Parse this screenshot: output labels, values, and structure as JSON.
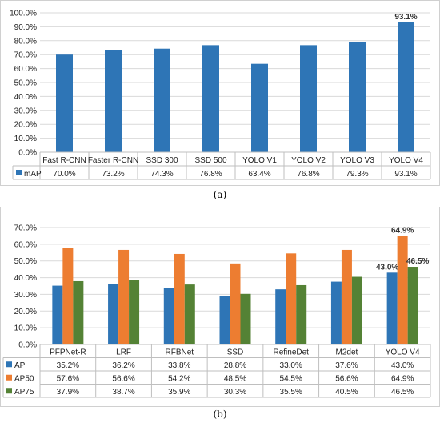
{
  "charts": {
    "a": {
      "caption": "(a)",
      "chart_data": {
        "type": "bar",
        "categories": [
          "Fast R-CNN",
          "Faster R-CNN",
          "SSD 300",
          "SSD 500",
          "YOLO V1",
          "YOLO V2",
          "YOLO V3",
          "YOLO V4"
        ],
        "series": [
          {
            "name": "mAP",
            "values": [
              70.0,
              73.2,
              74.3,
              76.8,
              63.4,
              76.8,
              79.3,
              93.1
            ],
            "color": "#2E75B6"
          }
        ],
        "value_labels": [
          "70.0%",
          "73.2%",
          "74.3%",
          "76.8%",
          "63.4%",
          "76.8%",
          "79.3%",
          "93.1%"
        ],
        "ylim": [
          0,
          100
        ],
        "yticks": [
          0,
          10,
          20,
          30,
          40,
          50,
          60,
          70,
          80,
          90,
          100
        ],
        "ytick_labels": [
          "0.0%",
          "10.0%",
          "20.0%",
          "30.0%",
          "40.0%",
          "50.0%",
          "60.0%",
          "70.0%",
          "80.0%",
          "90.0%",
          "100.0%"
        ],
        "annotations": [
          {
            "series": 0,
            "index": 7,
            "text": "93.1%"
          }
        ],
        "grid": true,
        "legend": "data-table-left"
      }
    },
    "b": {
      "caption": "(b)",
      "chart_data": {
        "type": "bar",
        "categories": [
          "PFPNet-R",
          "LRF",
          "RFBNet",
          "SSD",
          "RefineDet",
          "M2det",
          "YOLO V4"
        ],
        "series": [
          {
            "name": "AP",
            "values": [
              35.2,
              36.2,
              33.8,
              28.8,
              33.0,
              37.6,
              43.0
            ],
            "color": "#2E75B6"
          },
          {
            "name": "AP50",
            "values": [
              57.6,
              56.6,
              54.2,
              48.5,
              54.5,
              56.6,
              64.9
            ],
            "color": "#ED7D31"
          },
          {
            "name": "AP75",
            "values": [
              37.9,
              38.7,
              35.9,
              30.3,
              35.5,
              40.5,
              46.5
            ],
            "color": "#548235"
          }
        ],
        "value_labels": [
          [
            "35.2%",
            "36.2%",
            "33.8%",
            "28.8%",
            "33.0%",
            "37.6%",
            "43.0%"
          ],
          [
            "57.6%",
            "56.6%",
            "54.2%",
            "48.5%",
            "54.5%",
            "56.6%",
            "64.9%"
          ],
          [
            "37.9%",
            "38.7%",
            "35.9%",
            "30.3%",
            "35.5%",
            "40.5%",
            "46.5%"
          ]
        ],
        "ylim": [
          0,
          70
        ],
        "yticks": [
          0,
          10,
          20,
          30,
          40,
          50,
          60,
          70
        ],
        "ytick_labels": [
          "0.0%",
          "10.0%",
          "20.0%",
          "30.0%",
          "40.0%",
          "50.0%",
          "60.0%",
          "70.0%"
        ],
        "annotations": [
          {
            "series": 0,
            "index": 6,
            "text": "43.0%"
          },
          {
            "series": 1,
            "index": 6,
            "text": "64.9%"
          },
          {
            "series": 2,
            "index": 6,
            "text": "46.5%"
          }
        ],
        "grid": true,
        "legend": "data-table-left"
      }
    }
  }
}
